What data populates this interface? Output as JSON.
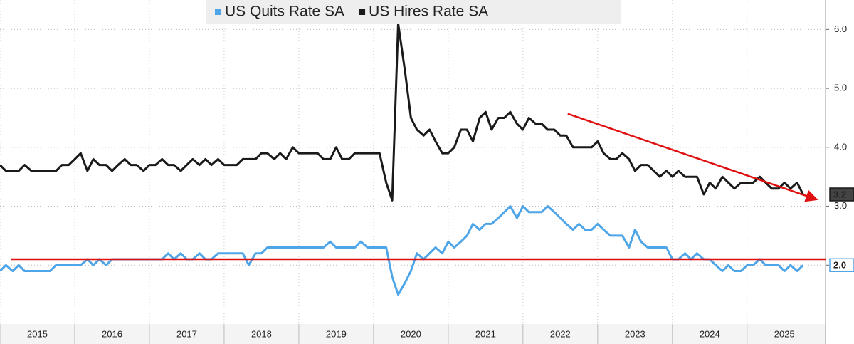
{
  "chart_data": {
    "type": "line",
    "x": [
      2015.0,
      2015.08,
      2015.17,
      2015.25,
      2015.33,
      2015.42,
      2015.5,
      2015.58,
      2015.67,
      2015.75,
      2015.83,
      2015.92,
      2016.0,
      2016.08,
      2016.17,
      2016.25,
      2016.33,
      2016.42,
      2016.5,
      2016.58,
      2016.67,
      2016.75,
      2016.83,
      2016.92,
      2017.0,
      2017.08,
      2017.17,
      2017.25,
      2017.33,
      2017.42,
      2017.5,
      2017.58,
      2017.67,
      2017.75,
      2017.83,
      2017.92,
      2018.0,
      2018.08,
      2018.17,
      2018.25,
      2018.33,
      2018.42,
      2018.5,
      2018.58,
      2018.67,
      2018.75,
      2018.83,
      2018.92,
      2019.0,
      2019.08,
      2019.17,
      2019.25,
      2019.33,
      2019.42,
      2019.5,
      2019.58,
      2019.67,
      2019.75,
      2019.83,
      2019.92,
      2020.0,
      2020.08,
      2020.17,
      2020.25,
      2020.33,
      2020.42,
      2020.5,
      2020.58,
      2020.67,
      2020.75,
      2020.83,
      2020.92,
      2021.0,
      2021.08,
      2021.17,
      2021.25,
      2021.33,
      2021.42,
      2021.5,
      2021.58,
      2021.67,
      2021.75,
      2021.83,
      2021.92,
      2022.0,
      2022.08,
      2022.17,
      2022.25,
      2022.33,
      2022.42,
      2022.5,
      2022.58,
      2022.67,
      2022.75,
      2022.83,
      2022.92,
      2023.0,
      2023.08,
      2023.17,
      2023.25,
      2023.33,
      2023.42,
      2023.5,
      2023.58,
      2023.67,
      2023.75,
      2023.83,
      2023.92,
      2024.0,
      2024.08,
      2024.17,
      2024.25,
      2024.33,
      2024.42,
      2024.5,
      2024.58,
      2024.67,
      2024.75,
      2024.83,
      2024.92,
      2025.0,
      2025.08,
      2025.17,
      2025.25,
      2025.33,
      2025.42,
      2025.5,
      2025.58,
      2025.67,
      2025.75
    ],
    "series": [
      {
        "name": "US Quits Rate SA",
        "color": "#4ea5e8",
        "last_label": "2.0",
        "values": [
          1.9,
          2.0,
          1.9,
          2.0,
          1.9,
          1.9,
          1.9,
          1.9,
          1.9,
          2.0,
          2.0,
          2.0,
          2.0,
          2.0,
          2.1,
          2.0,
          2.1,
          2.0,
          2.1,
          2.1,
          2.1,
          2.1,
          2.1,
          2.1,
          2.1,
          2.1,
          2.1,
          2.2,
          2.1,
          2.2,
          2.1,
          2.1,
          2.2,
          2.1,
          2.1,
          2.2,
          2.2,
          2.2,
          2.2,
          2.2,
          2.0,
          2.2,
          2.2,
          2.3,
          2.3,
          2.3,
          2.3,
          2.3,
          2.3,
          2.3,
          2.3,
          2.3,
          2.3,
          2.4,
          2.3,
          2.3,
          2.3,
          2.3,
          2.4,
          2.3,
          2.3,
          2.3,
          2.3,
          1.8,
          1.5,
          1.7,
          1.9,
          2.2,
          2.1,
          2.2,
          2.3,
          2.2,
          2.4,
          2.3,
          2.4,
          2.5,
          2.7,
          2.6,
          2.7,
          2.7,
          2.8,
          2.9,
          3.0,
          2.8,
          3.0,
          2.9,
          2.9,
          2.9,
          3.0,
          2.9,
          2.8,
          2.7,
          2.6,
          2.7,
          2.6,
          2.6,
          2.7,
          2.6,
          2.5,
          2.5,
          2.5,
          2.3,
          2.6,
          2.4,
          2.3,
          2.3,
          2.3,
          2.3,
          2.1,
          2.1,
          2.2,
          2.1,
          2.2,
          2.1,
          2.1,
          2.0,
          1.9,
          2.0,
          1.9,
          1.9,
          2.0,
          2.0,
          2.1,
          2.0,
          2.0,
          2.0,
          1.9,
          2.0,
          1.9,
          2.0
        ]
      },
      {
        "name": "US Hires Rate SA",
        "color": "#1a1a1a",
        "last_label": "3.2",
        "values": [
          3.7,
          3.6,
          3.6,
          3.6,
          3.7,
          3.6,
          3.6,
          3.6,
          3.6,
          3.6,
          3.7,
          3.7,
          3.8,
          3.9,
          3.6,
          3.8,
          3.7,
          3.7,
          3.6,
          3.7,
          3.8,
          3.7,
          3.7,
          3.6,
          3.7,
          3.7,
          3.8,
          3.7,
          3.7,
          3.6,
          3.7,
          3.8,
          3.7,
          3.8,
          3.7,
          3.8,
          3.7,
          3.7,
          3.7,
          3.8,
          3.8,
          3.8,
          3.9,
          3.9,
          3.8,
          3.9,
          3.8,
          4.0,
          3.9,
          3.9,
          3.9,
          3.9,
          3.8,
          3.8,
          4.0,
          3.8,
          3.8,
          3.9,
          3.9,
          3.9,
          3.9,
          3.9,
          3.4,
          3.1,
          6.1,
          5.3,
          4.5,
          4.3,
          4.2,
          4.3,
          4.1,
          3.9,
          3.9,
          4.0,
          4.3,
          4.3,
          4.1,
          4.5,
          4.6,
          4.3,
          4.5,
          4.5,
          4.6,
          4.4,
          4.3,
          4.5,
          4.4,
          4.4,
          4.3,
          4.3,
          4.2,
          4.2,
          4.0,
          4.0,
          4.0,
          4.0,
          4.1,
          3.9,
          3.8,
          3.8,
          3.9,
          3.8,
          3.6,
          3.7,
          3.7,
          3.6,
          3.5,
          3.6,
          3.5,
          3.6,
          3.5,
          3.5,
          3.5,
          3.2,
          3.4,
          3.3,
          3.5,
          3.4,
          3.3,
          3.4,
          3.4,
          3.4,
          3.5,
          3.4,
          3.3,
          3.3,
          3.4,
          3.3,
          3.4,
          3.2
        ]
      }
    ],
    "xlim": [
      2015.0,
      2026.05
    ],
    "xticks": [
      {
        "value": 2015,
        "label": "2015"
      },
      {
        "value": 2016,
        "label": "2016"
      },
      {
        "value": 2017,
        "label": "2017"
      },
      {
        "value": 2018,
        "label": "2018"
      },
      {
        "value": 2019,
        "label": "2019"
      },
      {
        "value": 2020,
        "label": "2020"
      },
      {
        "value": 2021,
        "label": "2021"
      },
      {
        "value": 2022,
        "label": "2022"
      },
      {
        "value": 2023,
        "label": "2023"
      },
      {
        "value": 2024,
        "label": "2024"
      },
      {
        "value": 2025,
        "label": "2025"
      }
    ],
    "ylim": [
      1.0,
      6.5
    ],
    "yticks": [
      {
        "value": 2,
        "label": "2.0"
      },
      {
        "value": 3,
        "label": "3.0"
      },
      {
        "value": 4,
        "label": "4.0"
      },
      {
        "value": 5,
        "label": "5.0"
      },
      {
        "value": 6,
        "label": "6.0"
      }
    ],
    "grid": true,
    "legend": "top",
    "reference_line": {
      "value": 2.1,
      "color": "#e01010"
    },
    "trend_arrow": {
      "x": [
        2022.6,
        2025.92
      ],
      "y": [
        4.57,
        3.12
      ],
      "color": "#e01010"
    }
  }
}
